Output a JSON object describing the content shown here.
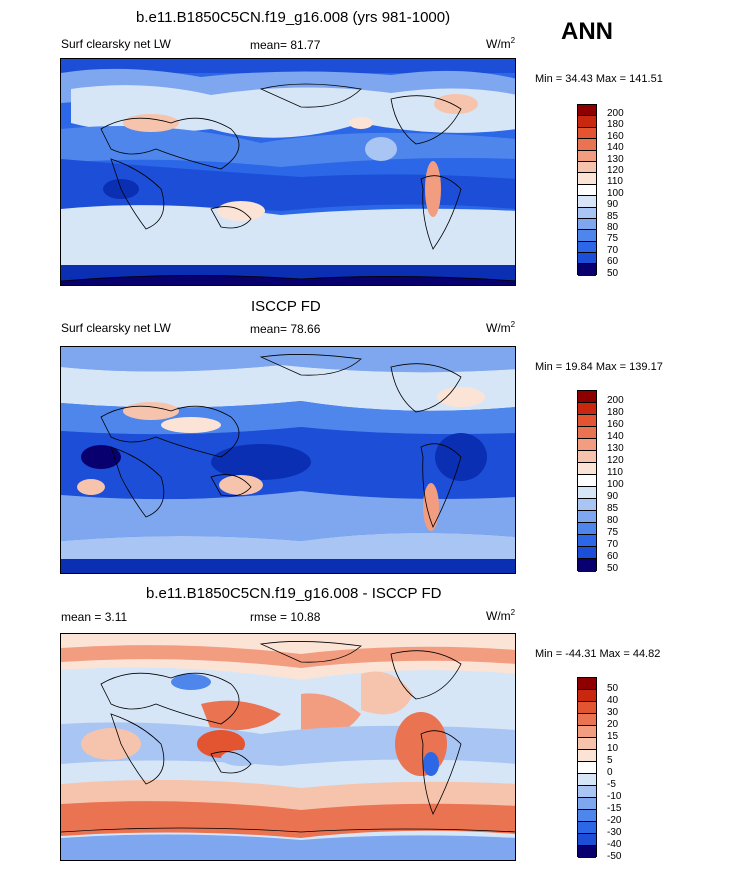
{
  "season": "ANN",
  "units_text": "W/m",
  "units_exp": "2",
  "colors": {
    "abs": [
      "#07006e",
      "#0a2fb2",
      "#1d4ed8",
      "#2b67e6",
      "#4e86ec",
      "#7ea7ef",
      "#a9c5f3",
      "#d7e6f7",
      "#fbe3d6",
      "#f6c4ad",
      "#f29c80",
      "#ea7352",
      "#e25530",
      "#c9280e",
      "#8e0000"
    ],
    "diff": [
      "#07006e",
      "#0a2fb2",
      "#1d4ed8",
      "#2b67e6",
      "#4e86ec",
      "#7ea7ef",
      "#a9c5f3",
      "#d7e6f7",
      "#fbe3d6",
      "#f6c4ad",
      "#f29c80",
      "#ea7352",
      "#e25530",
      "#c9280e",
      "#8e0000"
    ]
  },
  "panels": [
    {
      "title": "b.e11.B1850C5CN.f19_g16.008 (yrs 981-1000)",
      "left_label": "Surf clearsky net LW",
      "stat_text": "mean=  81.77",
      "minmax": "Min =  34.43 Max = 141.51",
      "levels": [
        "200",
        "180",
        "160",
        "140",
        "130",
        "120",
        "110",
        "100",
        "90",
        "85",
        "80",
        "75",
        "70",
        "60",
        "50"
      ]
    },
    {
      "title": "ISCCP FD",
      "left_label": "Surf clearsky net LW",
      "stat_text": "mean=  78.66",
      "minmax": "Min =  19.84 Max = 139.17",
      "levels": [
        "200",
        "180",
        "160",
        "140",
        "130",
        "120",
        "110",
        "100",
        "90",
        "85",
        "80",
        "75",
        "70",
        "60",
        "50"
      ]
    },
    {
      "title": "b.e11.B1850C5CN.f19_g16.008 - ISCCP FD",
      "left_label": "mean =   3.11",
      "stat_text": "rmse =  10.88",
      "minmax": "Min = -44.31 Max =  44.82",
      "levels": [
        "50",
        "40",
        "30",
        "20",
        "15",
        "10",
        "5",
        "0",
        "-5",
        "-10",
        "-15",
        "-20",
        "-30",
        "-40",
        "-50"
      ]
    }
  ]
}
